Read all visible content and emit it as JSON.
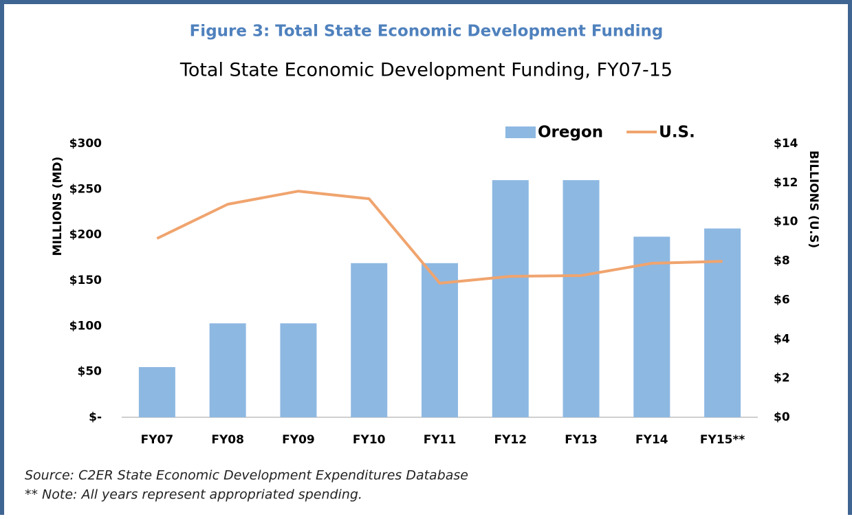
{
  "figure_title": "Figure 3: Total State Economic Development Funding",
  "source": "Source: C2ER State Economic Development Expenditures Database",
  "note": "** Note: All years represent appropriated spending.",
  "chart_data": {
    "type": "bar",
    "title": "Total State Economic Development Funding, FY07-15",
    "y_label": "MILLIONS (MD)",
    "y2_label": "BILLIONS (U.S)",
    "categories": [
      "FY07",
      "FY08",
      "FY09",
      "FY10",
      "FY11",
      "FY12",
      "FY13",
      "FY14",
      "FY15**"
    ],
    "series": [
      {
        "name": "Oregon",
        "type": "bar",
        "color": "#8db8e2",
        "values": [
          55,
          103,
          103,
          169,
          169,
          260,
          260,
          198,
          207
        ]
      },
      {
        "name": "U.S.",
        "type": "line",
        "axis": "y2",
        "color": "#f0a46e",
        "values": [
          9.15,
          10.9,
          11.57,
          11.18,
          6.86,
          7.21,
          7.25,
          7.88,
          7.98
        ]
      }
    ],
    "ylim": [
      0,
      300
    ],
    "yticks": [
      {
        "value": 0,
        "label": "$-"
      },
      {
        "value": 50,
        "label": "$50"
      },
      {
        "value": 100,
        "label": "$100"
      },
      {
        "value": 150,
        "label": "$150"
      },
      {
        "value": 200,
        "label": "$200"
      },
      {
        "value": 250,
        "label": "$250"
      },
      {
        "value": 300,
        "label": "$300"
      }
    ],
    "y2lim": [
      0,
      14
    ],
    "y2ticks": [
      {
        "value": 0,
        "label": "$0"
      },
      {
        "value": 2,
        "label": "$2"
      },
      {
        "value": 4,
        "label": "$4"
      },
      {
        "value": 6,
        "label": "$6"
      },
      {
        "value": 8,
        "label": "$8"
      },
      {
        "value": 10,
        "label": "$10"
      },
      {
        "value": 12,
        "label": "$12"
      },
      {
        "value": 14,
        "label": "$14"
      }
    ],
    "grid": false,
    "legend": "top-right"
  }
}
